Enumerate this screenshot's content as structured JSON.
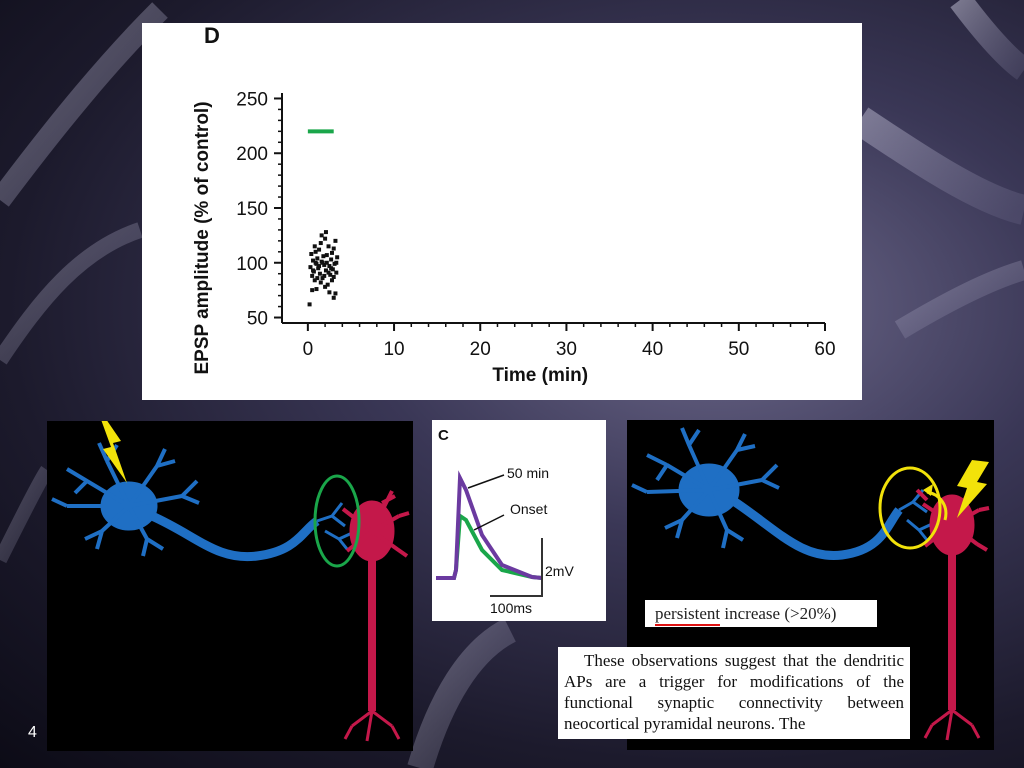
{
  "slide_number": "4",
  "chart_data": {
    "type": "scatter",
    "panel_label": "D",
    "xlabel": "Time (min)",
    "ylabel": "EPSP amplitude (% of control)",
    "xlim": [
      -3,
      60
    ],
    "ylim": [
      45,
      255
    ],
    "xticks": [
      0,
      10,
      20,
      30,
      40,
      50,
      60
    ],
    "yticks": [
      50,
      100,
      150,
      200,
      250
    ],
    "grid": false,
    "annotation_bar": {
      "x_start": 0,
      "x_end": 3,
      "y": 220,
      "color": "#1aa64a"
    },
    "points": [
      [
        0.3,
        96
      ],
      [
        0.4,
        108
      ],
      [
        0.5,
        88
      ],
      [
        0.6,
        102
      ],
      [
        0.7,
        92
      ],
      [
        0.8,
        84
      ],
      [
        0.9,
        110
      ],
      [
        1.0,
        99
      ],
      [
        1.1,
        104
      ],
      [
        1.2,
        95
      ],
      [
        1.3,
        112
      ],
      [
        1.4,
        90
      ],
      [
        1.5,
        118
      ],
      [
        1.6,
        101
      ],
      [
        1.7,
        86
      ],
      [
        1.8,
        106
      ],
      [
        1.9,
        98
      ],
      [
        2.0,
        122
      ],
      [
        2.1,
        93
      ],
      [
        2.2,
        100
      ],
      [
        2.3,
        80
      ],
      [
        2.4,
        115
      ],
      [
        2.5,
        97
      ],
      [
        2.6,
        89
      ],
      [
        2.7,
        103
      ],
      [
        2.8,
        109
      ],
      [
        2.9,
        94
      ],
      [
        3.0,
        87
      ],
      [
        3.1,
        99
      ],
      [
        3.2,
        120
      ],
      [
        3.3,
        91
      ],
      [
        3.4,
        105
      ],
      [
        0.5,
        75
      ],
      [
        0.2,
        62
      ],
      [
        1.0,
        76
      ],
      [
        1.5,
        82
      ],
      [
        2.0,
        78
      ],
      [
        2.5,
        73
      ],
      [
        3.0,
        68
      ],
      [
        3.2,
        72
      ],
      [
        0.8,
        115
      ],
      [
        1.3,
        97
      ],
      [
        1.7,
        100
      ],
      [
        2.2,
        107
      ],
      [
        2.7,
        95
      ],
      [
        3.3,
        100
      ],
      [
        0.6,
        93
      ],
      [
        1.9,
        88
      ],
      [
        2.4,
        91
      ],
      [
        3.0,
        113
      ],
      [
        1.1,
        86
      ],
      [
        2.8,
        84
      ],
      [
        0.9,
        100
      ],
      [
        1.6,
        125
      ],
      [
        2.1,
        128
      ]
    ]
  },
  "trace_panel": {
    "label": "C",
    "legend_50": "50 min",
    "legend_onset": "Onset",
    "scale_mv": "2mV",
    "scale_ms": "100ms",
    "color_50": "#6b3aa0",
    "color_onset": "#1aa64a"
  },
  "persistent_text": {
    "highlight": "persistent",
    "rest": " increase (>20%)"
  },
  "quote": "These observations suggest that the dendritic APs are a trigger for modifications of the functional synaptic connectivity between neocortical pyramidal neurons. The",
  "colors": {
    "neuron_pre": "#1f6fc4",
    "neuron_post": "#c4184a",
    "lightning": "#f2e20a",
    "green_circle": "#1aa64a",
    "yellow_circle": "#f2e20a"
  },
  "icons": {
    "lightning": "lightning-bolt-icon"
  }
}
